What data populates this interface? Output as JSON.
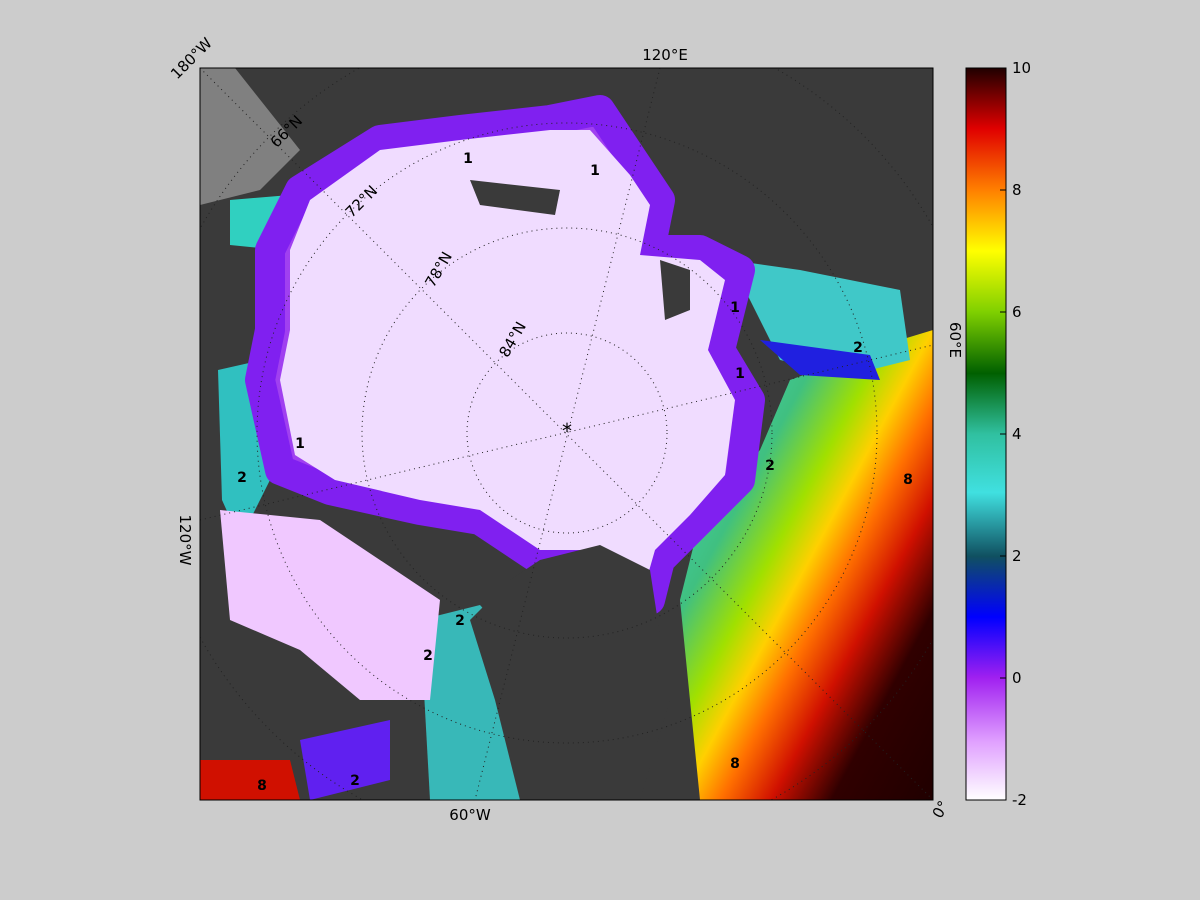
{
  "map": {
    "longitude_labels": [
      "180°W",
      "120°E",
      "60°E",
      "0°",
      "60°W",
      "120°W"
    ],
    "latitude_labels": [
      "66°N",
      "72°N",
      "78°N",
      "84°N"
    ],
    "contour_labels": [
      "1",
      "1",
      "1",
      "1",
      "1",
      "2",
      "2",
      "2",
      "2",
      "2",
      "8",
      "8",
      "8",
      "2"
    ]
  },
  "colorbar": {
    "lim": [
      -2,
      10
    ],
    "ticks": [
      -2,
      0,
      2,
      4,
      6,
      8,
      10
    ]
  }
}
